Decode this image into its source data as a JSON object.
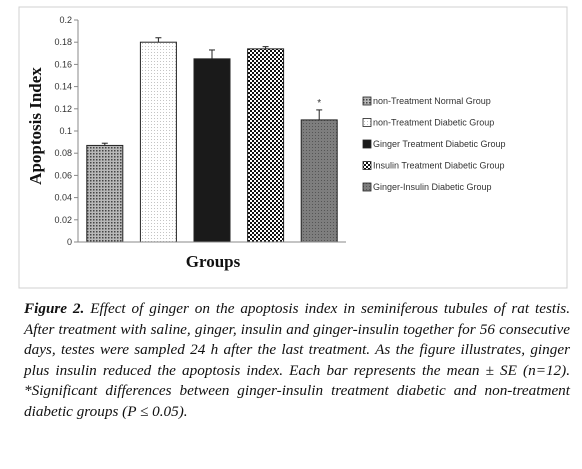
{
  "chart_data": {
    "type": "bar",
    "title": "",
    "xlabel": "Groups",
    "ylabel": "Apoptosis Index",
    "ylim": [
      0,
      0.2
    ],
    "yticks": [
      "0",
      "0.02",
      "0.04",
      "0.06",
      "0.08",
      "0.1",
      "0.12",
      "0.14",
      "0.16",
      "0.18",
      "0.2"
    ],
    "categories": [
      "non-Treatment Normal Group",
      "non-Treatment Diabetic Group",
      "Ginger Treatment Diabetic Group",
      "Insulin Treatment Diabetic Group",
      "Ginger-Insulin Diabetic Group"
    ],
    "values": [
      0.087,
      0.18,
      0.165,
      0.174,
      0.11
    ],
    "errors": [
      0.002,
      0.004,
      0.008,
      0.002,
      0.009
    ],
    "annotations": [
      {
        "category_index": 4,
        "text": "*"
      }
    ],
    "legend_position": "right",
    "grid": false,
    "fill_patterns": [
      "dense-dots",
      "light-dots",
      "black",
      "checker",
      "medium-gray"
    ]
  },
  "caption": {
    "label": "Figure 2.",
    "text": "Effect of ginger on the apoptosis index in seminiferous tubules of rat testis. After treatment with saline, ginger, insulin and ginger-insulin together for 56 consecutive days, testes were sampled 24 h after the last treatment. As the figure illustrates, ginger plus insulin reduced the apoptosis index. Each bar represents the mean ± SE (n=12). *Significant differences between ginger-insulin treatment diabetic and non-treatment diabetic groups (P ≤ 0.05)."
  }
}
